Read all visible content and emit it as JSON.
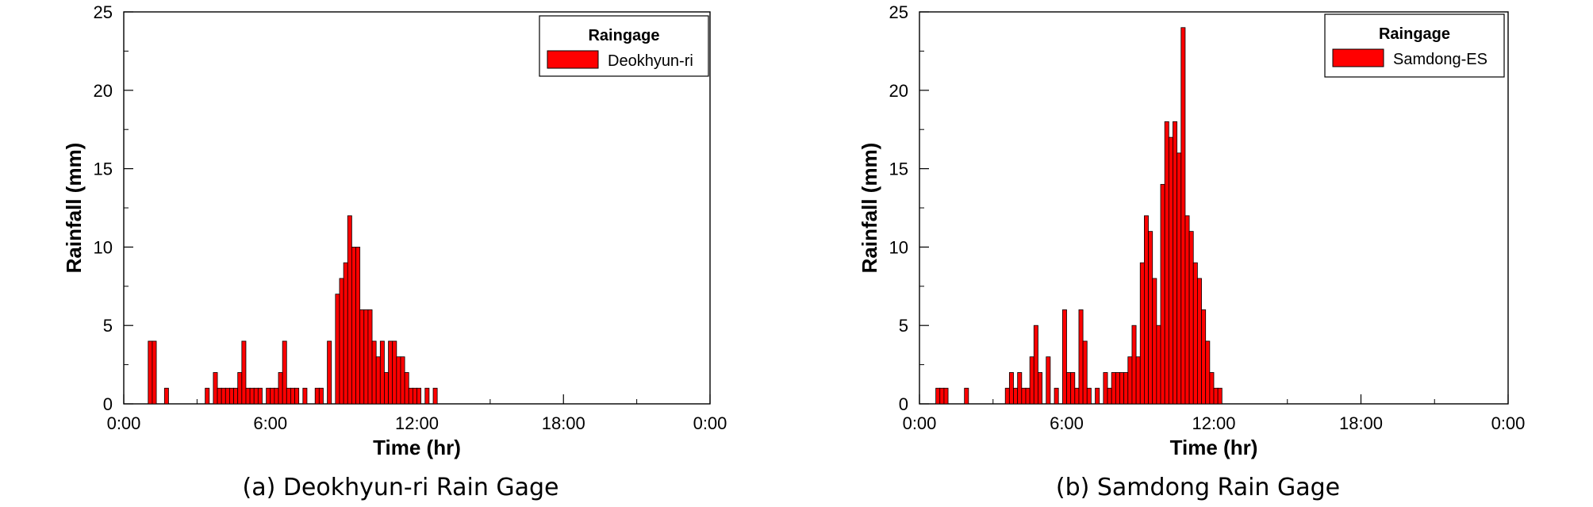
{
  "chart_data": [
    {
      "type": "bar",
      "caption": "(a) Deokhyun-ri Rain Gage",
      "xlabel": "Time (hr)",
      "ylabel": "Rainfall (mm)",
      "ylim": [
        0,
        25
      ],
      "yticks": [
        "0",
        "5",
        "10",
        "15",
        "20",
        "25"
      ],
      "xlim_hours": [
        0,
        24
      ],
      "xticks": [
        "0:00",
        "6:00",
        "12:00",
        "18:00",
        "0:00"
      ],
      "grid": false,
      "bin_minutes": 10,
      "legend": {
        "title": "Raingage",
        "position": "top-right"
      },
      "series": [
        {
          "name": "Deokhyun-ri",
          "color": "#ff0000",
          "x": [
            "1:00",
            "1:10",
            "1:40",
            "3:20",
            "3:40",
            "3:50",
            "4:00",
            "4:10",
            "4:20",
            "4:30",
            "4:40",
            "4:50",
            "5:00",
            "5:10",
            "5:20",
            "5:30",
            "5:50",
            "6:00",
            "6:10",
            "6:20",
            "6:30",
            "6:40",
            "6:50",
            "7:00",
            "7:20",
            "7:50",
            "8:00",
            "8:20",
            "8:40",
            "8:50",
            "9:00",
            "9:10",
            "9:20",
            "9:30",
            "9:40",
            "9:50",
            "10:00",
            "10:10",
            "10:20",
            "10:30",
            "10:40",
            "10:50",
            "11:00",
            "11:10",
            "11:20",
            "11:30",
            "11:40",
            "11:50",
            "12:00",
            "12:20",
            "12:40"
          ],
          "values": [
            4,
            4,
            1,
            1,
            2,
            1,
            1,
            1,
            1,
            1,
            2,
            4,
            1,
            1,
            1,
            1,
            1,
            1,
            1,
            2,
            4,
            1,
            1,
            1,
            1,
            1,
            1,
            4,
            7,
            8,
            9,
            12,
            10,
            10,
            6,
            6,
            6,
            4,
            3,
            4,
            2,
            4,
            4,
            3,
            3,
            2,
            1,
            1,
            1,
            1,
            1
          ]
        }
      ]
    },
    {
      "type": "bar",
      "caption": "(b) Samdong Rain Gage",
      "xlabel": "Time (hr)",
      "ylabel": "Rainfall (mm)",
      "ylim": [
        0,
        25
      ],
      "yticks": [
        "0",
        "5",
        "10",
        "15",
        "20",
        "25"
      ],
      "xlim_hours": [
        0,
        24
      ],
      "xticks": [
        "0:00",
        "6:00",
        "12:00",
        "18:00",
        "0:00"
      ],
      "grid": false,
      "bin_minutes": 10,
      "legend": {
        "title": "Raingage",
        "position": "top-right"
      },
      "series": [
        {
          "name": "Samdong-ES",
          "color": "#ff0000",
          "x": [
            "0:40",
            "0:50",
            "1:00",
            "1:50",
            "3:30",
            "3:40",
            "3:50",
            "4:00",
            "4:10",
            "4:20",
            "4:30",
            "4:40",
            "4:50",
            "5:10",
            "5:30",
            "5:50",
            "6:00",
            "6:10",
            "6:20",
            "6:30",
            "6:40",
            "6:50",
            "7:10",
            "7:30",
            "7:40",
            "7:50",
            "8:00",
            "8:10",
            "8:20",
            "8:30",
            "8:40",
            "8:50",
            "9:00",
            "9:10",
            "9:20",
            "9:30",
            "9:40",
            "9:50",
            "10:00",
            "10:10",
            "10:20",
            "10:30",
            "10:40",
            "10:50",
            "11:00",
            "11:10",
            "11:20",
            "11:30",
            "11:40",
            "11:50",
            "12:00",
            "12:10"
          ],
          "values": [
            1,
            1,
            1,
            1,
            1,
            2,
            1,
            2,
            1,
            1,
            3,
            5,
            2,
            3,
            1,
            6,
            2,
            2,
            1,
            6,
            4,
            1,
            1,
            2,
            1,
            2,
            2,
            2,
            2,
            3,
            5,
            3,
            9,
            12,
            11,
            8,
            5,
            14,
            18,
            17,
            18,
            16,
            24,
            12,
            11,
            9,
            8,
            6,
            4,
            2,
            1,
            1
          ]
        }
      ]
    }
  ]
}
